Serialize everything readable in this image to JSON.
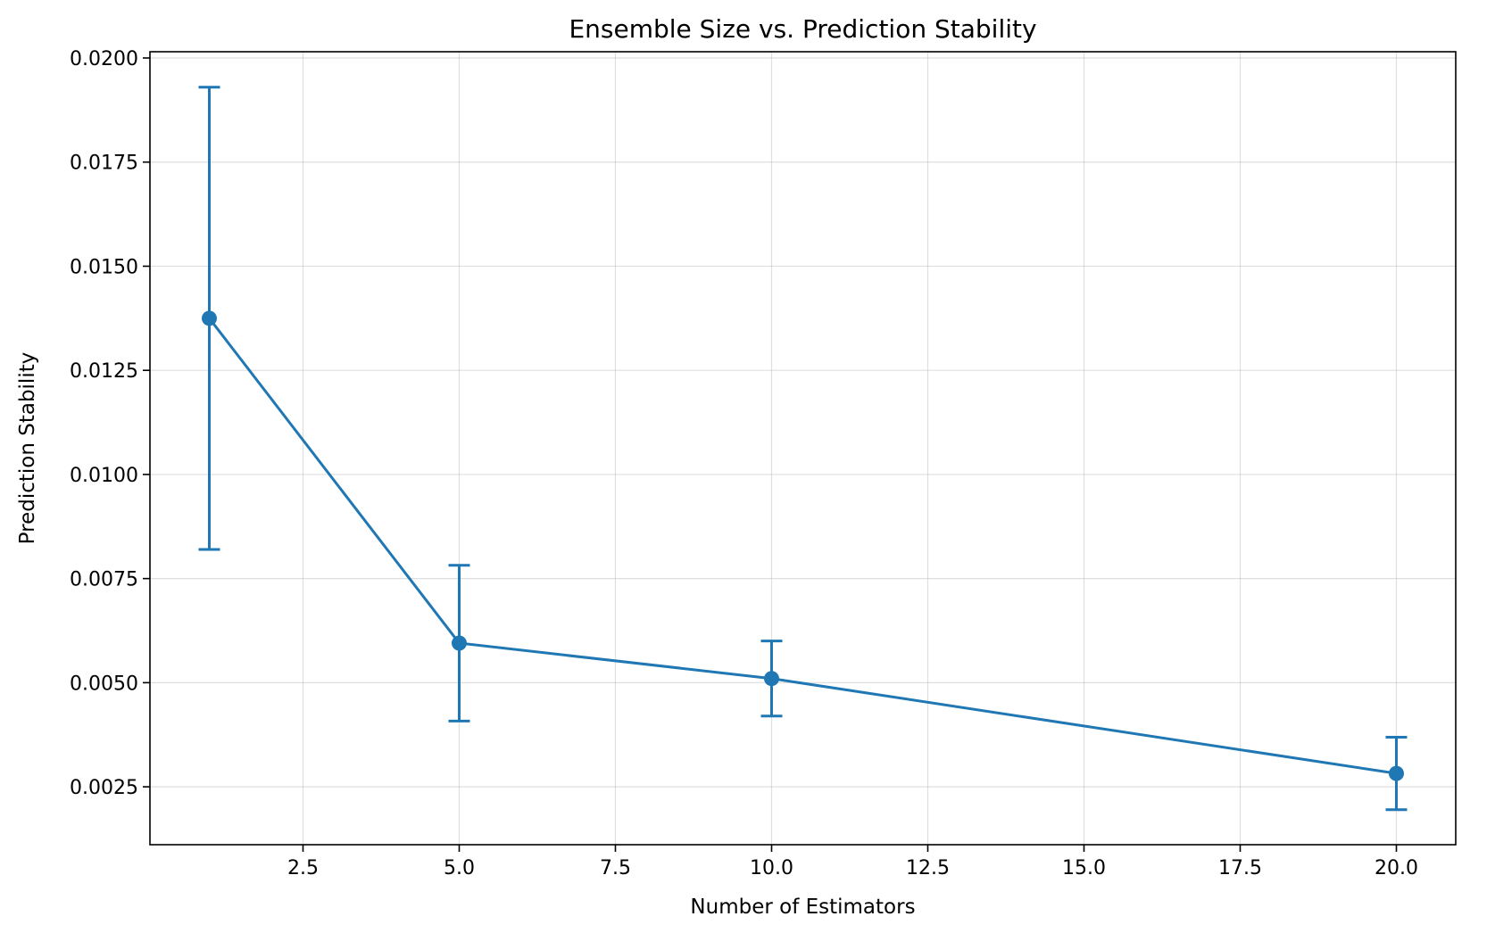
{
  "chart_data": {
    "type": "line",
    "title": "Ensemble Size vs. Prediction Stability",
    "xlabel": "Number of Estimators",
    "ylabel": "Prediction Stability",
    "xlim": [
      0.05,
      20.95
    ],
    "ylim": [
      0.00111,
      0.02015
    ],
    "xticks": [
      2.5,
      5.0,
      7.5,
      10.0,
      12.5,
      15.0,
      17.5,
      20.0
    ],
    "xtick_labels": [
      "2.5",
      "5.0",
      "7.5",
      "10.0",
      "12.5",
      "15.0",
      "17.5",
      "20.0"
    ],
    "yticks": [
      0.0025,
      0.005,
      0.0075,
      0.01,
      0.0125,
      0.015,
      0.0175,
      0.02
    ],
    "ytick_labels": [
      "0.0025",
      "0.0050",
      "0.0075",
      "0.0100",
      "0.0125",
      "0.0150",
      "0.0175",
      "0.0200"
    ],
    "grid": true,
    "color": "#1f77b4",
    "series": [
      {
        "x": [
          1,
          5,
          10,
          20
        ],
        "y": [
          0.01375,
          0.00595,
          0.0051,
          0.00282
        ],
        "yerr_low": [
          0.0082,
          0.00408,
          0.0042,
          0.00195
        ],
        "yerr_high": [
          0.0193,
          0.00782,
          0.006,
          0.00369
        ]
      }
    ]
  }
}
